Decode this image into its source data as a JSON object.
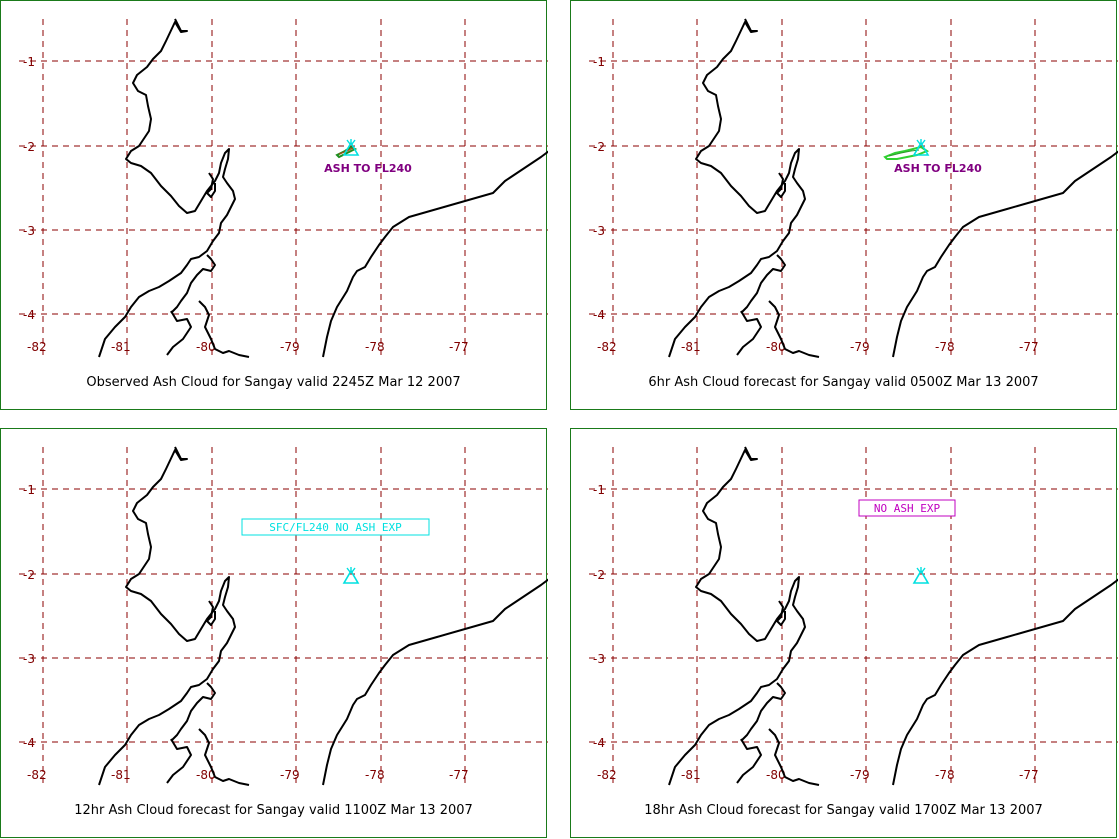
{
  "panels": [
    {
      "caption": "Observed Ash Cloud for Sangay valid 2245Z Mar 12 2007",
      "annotation": "ASH TO FL240",
      "annotation_style": "plain",
      "ash_polygon": "small",
      "colors": {
        "annotation": "#800080",
        "ash": "#1f8f1f",
        "volcano": "#00e0e0"
      }
    },
    {
      "caption": "6hr Ash Cloud forecast for Sangay valid 0500Z Mar 13 2007",
      "annotation": "ASH TO FL240",
      "annotation_style": "plain",
      "ash_polygon": "large",
      "colors": {
        "annotation": "#800080",
        "ash": "#30d030",
        "volcano": "#00e0e0"
      }
    },
    {
      "caption": "12hr Ash Cloud forecast for Sangay valid 1100Z Mar 13 2007",
      "annotation": "SFC/FL240 NO ASH EXP",
      "annotation_style": "boxed",
      "ash_polygon": "none",
      "colors": {
        "annotation": "#00e0e0",
        "volcano": "#00e0e0"
      }
    },
    {
      "caption": "18hr Ash Cloud forecast for Sangay valid 1700Z Mar 13 2007",
      "annotation": "NO ASH EXP",
      "annotation_style": "boxed",
      "ash_polygon": "none",
      "colors": {
        "annotation": "#c000c0",
        "volcano": "#00e0e0"
      }
    }
  ],
  "axes": {
    "lat_ticks": [
      "-1",
      "-2",
      "-3",
      "-4"
    ],
    "lon_ticks": [
      "-82",
      "-81",
      "-80",
      "-79",
      "-78",
      "-77"
    ]
  },
  "colors": {
    "grid": "#8b0000",
    "tick_text": "#800000",
    "border": "#1a7a1a",
    "coast": "#000000"
  }
}
